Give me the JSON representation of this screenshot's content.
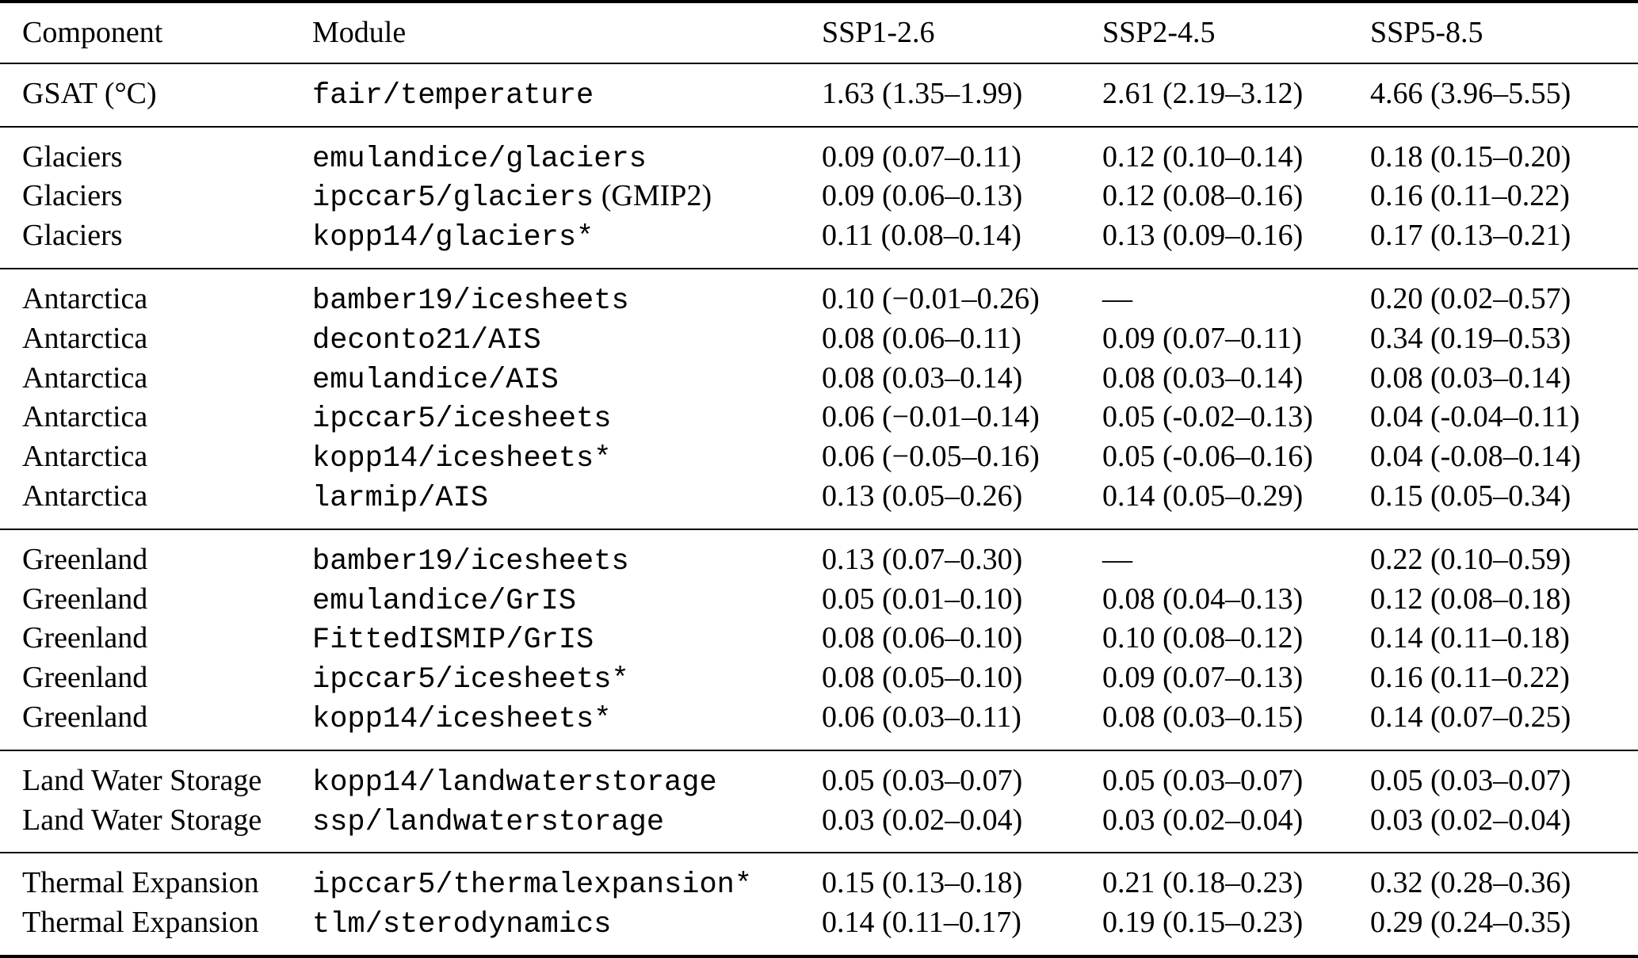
{
  "table": {
    "columns": [
      "Component",
      "Module",
      "SSP1-2.6",
      "SSP2-4.5",
      "SSP5-8.5"
    ],
    "sections": [
      {
        "name": "gsat",
        "rows": [
          {
            "component": "GSAT (°C)",
            "module": "fair/temperature",
            "ssp126": "1.63 (1.35–1.99)",
            "ssp245": "2.61 (2.19–3.12)",
            "ssp585": "4.66 (3.96–5.55)"
          }
        ]
      },
      {
        "name": "glaciers",
        "rows": [
          {
            "component": "Glaciers",
            "module": "emulandice/glaciers",
            "ssp126": "0.09 (0.07–0.11)",
            "ssp245": "0.12 (0.10–0.14)",
            "ssp585": "0.18 (0.15–0.20)"
          },
          {
            "component": "Glaciers",
            "module": "ipccar5/glaciers",
            "module_note": " (GMIP2)",
            "ssp126": "0.09 (0.06–0.13)",
            "ssp245": "0.12 (0.08–0.16)",
            "ssp585": "0.16 (0.11–0.22)"
          },
          {
            "component": "Glaciers",
            "module": "kopp14/glaciers*",
            "ssp126": "0.11 (0.08–0.14)",
            "ssp245": "0.13 (0.09–0.16)",
            "ssp585": "0.17 (0.13–0.21)"
          }
        ]
      },
      {
        "name": "antarctica",
        "rows": [
          {
            "component": "Antarctica",
            "module": "bamber19/icesheets",
            "ssp126": "0.10 (−0.01–0.26)",
            "ssp245": "—",
            "ssp585": "0.20 (0.02–0.57)"
          },
          {
            "component": "Antarctica",
            "module": "deconto21/AIS",
            "ssp126": "0.08 (0.06–0.11)",
            "ssp245": "0.09 (0.07–0.11)",
            "ssp585": "0.34 (0.19–0.53)"
          },
          {
            "component": "Antarctica",
            "module": "emulandice/AIS",
            "ssp126": "0.08 (0.03–0.14)",
            "ssp245": "0.08 (0.03–0.14)",
            "ssp585": "0.08 (0.03–0.14)"
          },
          {
            "component": "Antarctica",
            "module": "ipccar5/icesheets",
            "ssp126": "0.06 (−0.01–0.14)",
            "ssp245": "0.05 (-0.02–0.13)",
            "ssp585": "0.04 (-0.04–0.11)"
          },
          {
            "component": "Antarctica",
            "module": "kopp14/icesheets*",
            "ssp126": "0.06 (−0.05–0.16)",
            "ssp245": "0.05 (-0.06–0.16)",
            "ssp585": "0.04 (-0.08–0.14)"
          },
          {
            "component": "Antarctica",
            "module": "larmip/AIS",
            "ssp126": "0.13 (0.05–0.26)",
            "ssp245": "0.14 (0.05–0.29)",
            "ssp585": "0.15 (0.05–0.34)"
          }
        ]
      },
      {
        "name": "greenland",
        "rows": [
          {
            "component": "Greenland",
            "module": "bamber19/icesheets",
            "ssp126": "0.13 (0.07–0.30)",
            "ssp245": "—",
            "ssp585": "0.22 (0.10–0.59)"
          },
          {
            "component": "Greenland",
            "module": "emulandice/GrIS",
            "ssp126": "0.05 (0.01–0.10)",
            "ssp245": "0.08 (0.04–0.13)",
            "ssp585": "0.12 (0.08–0.18)"
          },
          {
            "component": "Greenland",
            "module": "FittedISMIP/GrIS",
            "ssp126": "0.08 (0.06–0.10)",
            "ssp245": "0.10 (0.08–0.12)",
            "ssp585": "0.14 (0.11–0.18)"
          },
          {
            "component": "Greenland",
            "module": "ipccar5/icesheets*",
            "ssp126": "0.08 (0.05–0.10)",
            "ssp245": "0.09 (0.07–0.13)",
            "ssp585": "0.16 (0.11–0.22)"
          },
          {
            "component": "Greenland",
            "module": "kopp14/icesheets*",
            "ssp126": "0.06 (0.03–0.11)",
            "ssp245": "0.08 (0.03–0.15)",
            "ssp585": "0.14 (0.07–0.25)"
          }
        ]
      },
      {
        "name": "land-water-storage",
        "rows": [
          {
            "component": "Land Water Storage",
            "module": "kopp14/landwaterstorage",
            "ssp126": "0.05 (0.03–0.07)",
            "ssp245": "0.05 (0.03–0.07)",
            "ssp585": "0.05 (0.03–0.07)"
          },
          {
            "component": "Land Water Storage",
            "module": "ssp/landwaterstorage",
            "ssp126": "0.03 (0.02–0.04)",
            "ssp245": "0.03 (0.02–0.04)",
            "ssp585": "0.03 (0.02–0.04)"
          }
        ]
      },
      {
        "name": "thermal-expansion",
        "rows": [
          {
            "component": "Thermal Expansion",
            "module": "ipccar5/thermalexpansion*",
            "ssp126": "0.15 (0.13–0.18)",
            "ssp245": "0.21 (0.18–0.23)",
            "ssp585": "0.32 (0.28–0.36)"
          },
          {
            "component": "Thermal Expansion",
            "module": "tlm/sterodynamics",
            "ssp126": "0.14 (0.11–0.17)",
            "ssp245": "0.19 (0.15–0.23)",
            "ssp585": "0.29 (0.24–0.35)"
          }
        ]
      }
    ]
  }
}
